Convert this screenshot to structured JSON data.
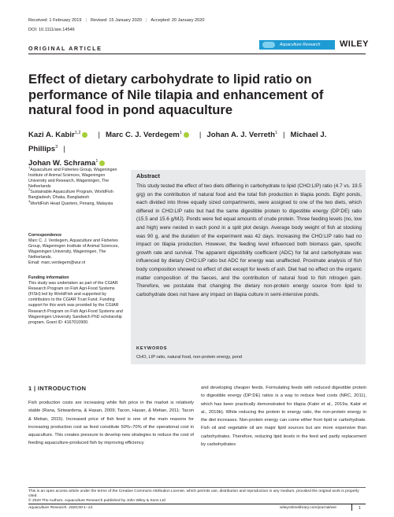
{
  "header": {
    "received": "Received: 1 February 2019",
    "revised": "Revised: 15 January 2020",
    "accepted": "Accepted: 20 January 2020",
    "doi": "DOI: 10.1111/are.14546",
    "article_type": "ORIGINAL ARTICLE",
    "journal_logo_text": "Aquaculture Research",
    "publisher": "WILEY"
  },
  "title": "Effect of dietary carbohydrate to lipid ratio on performance of Nile tilapia and enhancement of natural food in pond aquaculture",
  "authors": [
    {
      "name": "Kazi A. Kabir",
      "sup": "1,2"
    },
    {
      "name": "Marc C. J. Verdegem",
      "sup": "1"
    },
    {
      "name": "Johan A. J. Verreth",
      "sup": "1"
    },
    {
      "name": "Michael J. Phillips",
      "sup": "3"
    },
    {
      "name": "Johan W. Schrama",
      "sup": "1"
    }
  ],
  "affiliations": [
    {
      "sup": "1",
      "text": "Aquaculture and Fisheries Group, Wageningen Institute of Animal Sciences, Wageningen University and Research, Wageningen, The Netherlands"
    },
    {
      "sup": "2",
      "text": "Sustainable Aquaculture Program, WorldFish Bangladesh, Dhaka, Bangladesh"
    },
    {
      "sup": "3",
      "text": "WorldFish Head Quarters, Penang, Malaysia"
    }
  ],
  "correspondence": {
    "heading": "Correspondence",
    "text": "Marc C. J. Verdegem, Aquaculture and Fisheries Group, Wageningen Institute of Animal Sciences, Wageningen University, Wageningen, The Netherlands.",
    "email": "Email: marc.verdegem@wur.nl"
  },
  "funding": {
    "heading": "Funding information",
    "text": "This study was undertaken as part of the CGIAR Research Program on Fish Agri-Food Systems (FISH) led by WorldFish and supported by contributors to the CGIAR Trust Fund. Funding support for this work was provided by the CGIAR Research Program on Fish Agri-Food Systems and Wageningen University Sandwich PhD scholarship program. Grant ID: 4167010900."
  },
  "abstract": {
    "heading": "Abstract",
    "text": "This study tested the effect of two diets differing in carbohydrate to lipid (CHO:LIP) ratio (4.7 vs. 19.5 g/g) on the contribution of natural food and the total fish production in tilapia ponds. Eight ponds, each divided into three equally sized compartments, were assigned to one of the two diets, which differed in CHO:LIP ratio but had the same digestible protein to digestible energy (DP:DE) ratio (15.5 and 15.6 g/MJ). Ponds were fed equal amounts of crude protein. Three feeding levels (no, low and high) were nested in each pond in a split plot design. Average body weight of fish at stocking was 90 g, and the duration of the experiment was 42 days. Increasing the CHO:LIP ratio had no impact on tilapia production. However, the feeding level influenced both biomass gain, specific growth rate and survival. The apparent digestibility coefficient (ADC) for fat and carbohydrate was influenced by dietary CHO:LIP ratio but ADC for energy was unaffected. Proximate analysis of fish body composition showed no effect of diet except for levels of ash. Diet had no effect on the organic matter composition of the faeces, and the contribution of natural food to fish nitrogen gain. Therefore, we postulate that changing the dietary non-protein energy source from lipid to carbohydrate does not have any impact on tilapia culture in semi-intensive ponds."
  },
  "keywords": {
    "heading": "KEYWORDS",
    "text": "CHO, LIP ratio, natural food, non-protein energy, pond"
  },
  "intro": {
    "heading": "1  |  INTRODUCTION",
    "left_text": "Fish production costs are increasing while fish price in the market is relatively stable (Rana, Siriwardena, & Hasan, 2009; Tacon, Hasan, & Metian, 2011; Tacon & Metian, 2015). Increased price of fish feed is one of the main reasons for increasing production cost as feed constitute 50%–70% of the operational cost in aquaculture. This creates pressure to develop new strategies to reduce the cost of feeding aquaculture-produced fish by improving efficiency",
    "right_text": "and developing cheaper feeds. Formulating feeds with reduced digestible protein to digestible energy (DP:DE) ratios is a way to reduce feed costs (NRC, 2011), which has been practically demonstrated for tilapia (Kabir et al., 2019a; Kabir et al., 2019b). While reducing the protein to energy ratio, the non-protein energy in the diet increases. Non-protein energy can come either from lipid or carbohydrate. Fish oil and vegetable oil are major lipid sources but are more expensive than carbohydrates. Therefore, reducing lipid levels in the feed and partly replacement by carbohydrates"
  },
  "footer": {
    "license": "This is an open access article under the terms of the Creative Commons Attribution License, which permits use, distribution and reproduction in any medium, provided the original work is properly cited.",
    "copyright": "© 2020 The Authors. Aquaculture Research published by John Wiley & Sons Ltd",
    "journal_ref": "Aquaculture Research. 2020;00:1–13.",
    "url": "wileyonlinelibrary.com/journal/are",
    "page": "1"
  }
}
